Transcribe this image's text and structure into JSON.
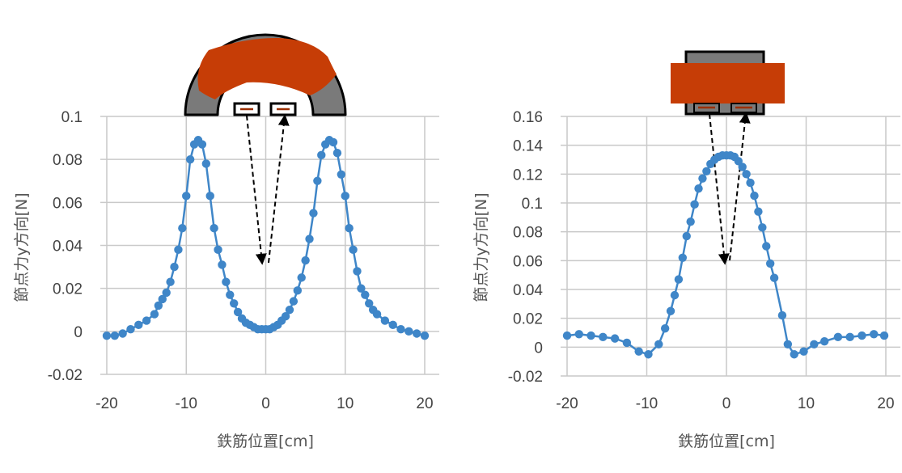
{
  "colors": {
    "series": "#3f86c8",
    "grid": "#c9c9c9",
    "magnet": "#c63d06",
    "yoke": "#7a7a7a",
    "arrow": "#000000"
  },
  "chart_data": [
    {
      "type": "line",
      "xlabel": "鉄筋位置[cm]",
      "ylabel": "節点力y方向[N]",
      "xlim": [
        -20,
        20
      ],
      "ylim": [
        -0.02,
        0.1
      ],
      "xticks": [
        "-20",
        "-10",
        "0",
        "10",
        "20"
      ],
      "yticks": [
        "-0.02",
        "0",
        "0.02",
        "0.04",
        "0.06",
        "0.08",
        "0.1"
      ],
      "grid": true,
      "series": [
        {
          "x": [
            -20,
            -19,
            -18,
            -17,
            -16,
            -15,
            -14,
            -13.5,
            -13,
            -12.5,
            -12,
            -11.5,
            -11,
            -10.5,
            -10,
            -9.5,
            -9,
            -8.5,
            -8,
            -7.5,
            -7,
            -6.5,
            -6,
            -5.5,
            -5,
            -4.5,
            -4,
            -3.5,
            -3,
            -2.5,
            -2,
            -1.5,
            -1,
            -0.5,
            0,
            0.5,
            1,
            1.5,
            2,
            2.5,
            3,
            3.5,
            4,
            4.5,
            5,
            5.5,
            6,
            6.5,
            7,
            7.5,
            8,
            8.5,
            9,
            9.5,
            10,
            10.5,
            11,
            11.5,
            12,
            12.5,
            13,
            13.5,
            14,
            15,
            16,
            17,
            18,
            19,
            20
          ],
          "y": [
            -0.002,
            -0.002,
            -0.001,
            0.001,
            0.003,
            0.005,
            0.008,
            0.012,
            0.015,
            0.018,
            0.023,
            0.03,
            0.038,
            0.048,
            0.063,
            0.08,
            0.087,
            0.089,
            0.087,
            0.078,
            0.063,
            0.048,
            0.038,
            0.031,
            0.023,
            0.017,
            0.013,
            0.009,
            0.006,
            0.004,
            0.003,
            0.002,
            0.001,
            0.001,
            0.001,
            0.001,
            0.002,
            0.003,
            0.005,
            0.007,
            0.01,
            0.014,
            0.019,
            0.025,
            0.033,
            0.043,
            0.055,
            0.07,
            0.082,
            0.087,
            0.089,
            0.088,
            0.083,
            0.073,
            0.063,
            0.048,
            0.038,
            0.028,
            0.02,
            0.017,
            0.013,
            0.01,
            0.008,
            0.005,
            0.003,
            0.001,
            0,
            -0.001,
            -0.002
          ]
        }
      ]
    },
    {
      "type": "line",
      "xlabel": "鉄筋位置[cm]",
      "ylabel": "節点力y方向[N]",
      "xlim": [
        -20,
        20
      ],
      "ylim": [
        -0.02,
        0.16
      ],
      "xticks": [
        "-20",
        "-10",
        "0",
        "10",
        "20"
      ],
      "yticks": [
        "-0.02",
        "0",
        "0.02",
        "0.04",
        "0.06",
        "0.08",
        "0.1",
        "0.12",
        "0.14",
        "0.16"
      ],
      "grid": true,
      "series": [
        {
          "x": [
            -20,
            -18.5,
            -17,
            -15.5,
            -14,
            -12.5,
            -11,
            -9.8,
            -8.5,
            -7.7,
            -7,
            -6.5,
            -6,
            -5.5,
            -5,
            -4.5,
            -4,
            -3.5,
            -3,
            -2.5,
            -2,
            -1.5,
            -1,
            -0.5,
            0,
            0.5,
            1,
            1.5,
            2,
            2.5,
            3,
            3.5,
            4,
            4.5,
            5,
            5.5,
            6,
            7,
            7.7,
            8.5,
            9.7,
            11,
            12.3,
            14,
            15.5,
            17,
            18.5,
            19.8
          ],
          "y": [
            0.008,
            0.009,
            0.008,
            0.007,
            0.006,
            0.003,
            -0.003,
            -0.005,
            0.002,
            0.013,
            0.025,
            0.036,
            0.047,
            0.062,
            0.077,
            0.087,
            0.099,
            0.11,
            0.117,
            0.122,
            0.127,
            0.13,
            0.132,
            0.133,
            0.133,
            0.133,
            0.132,
            0.129,
            0.125,
            0.12,
            0.114,
            0.105,
            0.094,
            0.083,
            0.07,
            0.058,
            0.048,
            0.022,
            0.002,
            -0.005,
            -0.003,
            0.002,
            0.004,
            0.007,
            0.007,
            0.008,
            0.009,
            0.008
          ]
        }
      ]
    }
  ]
}
